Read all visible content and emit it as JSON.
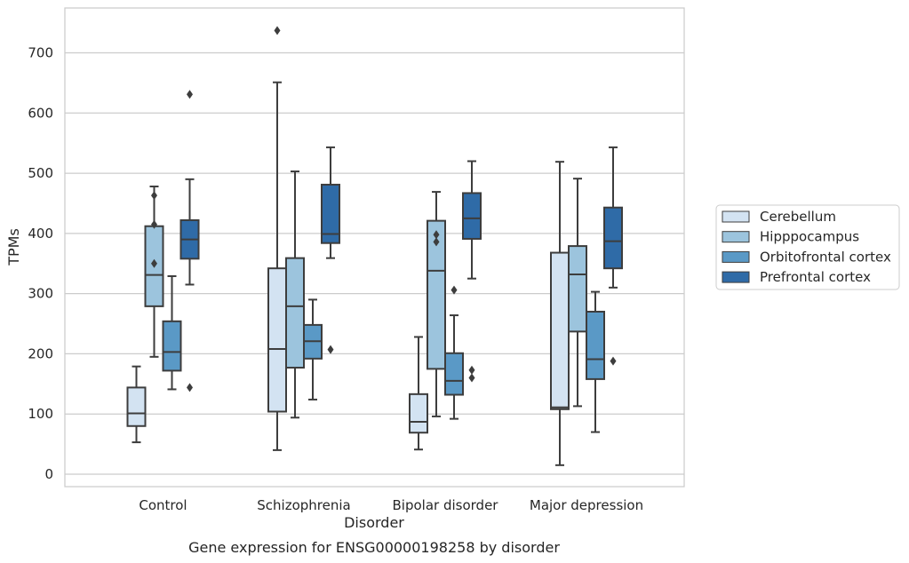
{
  "chart_data": {
    "type": "box",
    "caption": "Gene expression for ENSG00000198258 by disorder",
    "xlabel": "Disorder",
    "ylabel": "TPMs",
    "ylim": [
      -20,
      758
    ],
    "yticks": [
      0,
      100,
      200,
      300,
      400,
      500,
      600,
      700
    ],
    "grid": "horizontal",
    "legend_position": "right",
    "categories": [
      "Control",
      "Schizophrenia",
      "Bipolar disorder",
      "Major depression"
    ],
    "series": [
      {
        "name": "Cerebellum",
        "color": "#d3e3f2",
        "boxes": [
          {
            "whisker_low": 53,
            "q1": 80,
            "median": 101,
            "q3": 144,
            "whisker_high": 179,
            "outliers": []
          },
          {
            "whisker_low": 40,
            "q1": 104,
            "median": 208,
            "q3": 342,
            "whisker_high": 651,
            "outliers": [
              737
            ]
          },
          {
            "whisker_low": 41,
            "q1": 69,
            "median": 87,
            "q3": 133,
            "whisker_high": 228,
            "outliers": []
          },
          {
            "whisker_low": 15,
            "q1": 108,
            "median": 111,
            "q3": 368,
            "whisker_high": 519,
            "outliers": []
          }
        ]
      },
      {
        "name": "Hipppocampus",
        "color": "#9cc4dd",
        "boxes": [
          {
            "whisker_low": 195,
            "q1": 279,
            "median": 331,
            "q3": 412,
            "whisker_high": 478,
            "outliers": [
              463,
              415,
              350
            ]
          },
          {
            "whisker_low": 94,
            "q1": 177,
            "median": 279,
            "q3": 359,
            "whisker_high": 503,
            "outliers": []
          },
          {
            "whisker_low": 96,
            "q1": 175,
            "median": 338,
            "q3": 421,
            "whisker_high": 469,
            "outliers": [
              398,
              386
            ]
          },
          {
            "whisker_low": 113,
            "q1": 237,
            "median": 332,
            "q3": 379,
            "whisker_high": 491,
            "outliers": []
          }
        ]
      },
      {
        "name": "Orbitofrontal cortex",
        "color": "#5a99c6",
        "boxes": [
          {
            "whisker_low": 141,
            "q1": 172,
            "median": 203,
            "q3": 254,
            "whisker_high": 329,
            "outliers": []
          },
          {
            "whisker_low": 124,
            "q1": 192,
            "median": 221,
            "q3": 248,
            "whisker_high": 290,
            "outliers": []
          },
          {
            "whisker_low": 92,
            "q1": 132,
            "median": 155,
            "q3": 201,
            "whisker_high": 264,
            "outliers": [
              306
            ]
          },
          {
            "whisker_low": 70,
            "q1": 158,
            "median": 191,
            "q3": 270,
            "whisker_high": 303,
            "outliers": []
          }
        ]
      },
      {
        "name": "Prefrontal cortex",
        "color": "#2f6ba7",
        "boxes": [
          {
            "whisker_low": 315,
            "q1": 358,
            "median": 390,
            "q3": 422,
            "whisker_high": 490,
            "outliers": [
              631,
              144
            ]
          },
          {
            "whisker_low": 359,
            "q1": 384,
            "median": 399,
            "q3": 481,
            "whisker_high": 543,
            "outliers": [
              207
            ]
          },
          {
            "whisker_low": 325,
            "q1": 391,
            "median": 425,
            "q3": 467,
            "whisker_high": 520,
            "outliers": [
              173,
              160
            ]
          },
          {
            "whisker_low": 310,
            "q1": 342,
            "median": 387,
            "q3": 443,
            "whisker_high": 543,
            "outliers": [
              188
            ]
          }
        ]
      }
    ]
  }
}
